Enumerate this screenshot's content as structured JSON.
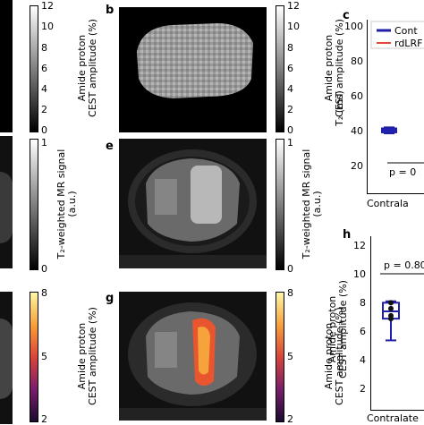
{
  "panels": {
    "b": {
      "letter": "b"
    },
    "c": {
      "letter": "c"
    },
    "e": {
      "letter": "e"
    },
    "g": {
      "letter": "g"
    },
    "h": {
      "letter": "h"
    }
  },
  "colorbars": {
    "top": {
      "ticks": [
        "12",
        "10",
        "8",
        "6",
        "4",
        "2",
        "0"
      ],
      "label_line1": "Amide proton",
      "label_line2": "CEST amplitude (%)"
    },
    "mid": {
      "ticks": [
        "1",
        "0"
      ],
      "label_line1": "T₂-weighted MR signal",
      "label_line2": "(a.u.)"
    },
    "bot": {
      "ticks": [
        "8",
        "5",
        "2"
      ],
      "label_line1": "Amide proton",
      "label_line2": "CEST amplitude (%)"
    }
  },
  "plot_c": {
    "legend": [
      "Cont",
      "rdLRF"
    ],
    "legend_colors": [
      "#1f1fa8",
      "#e04a3a"
    ],
    "y_ticks": [
      "100",
      "80",
      "60",
      "40",
      "20"
    ],
    "ylabel": "T₂ (ms)",
    "p_text": "p = 0",
    "xlabel": "Contrala"
  },
  "plot_h": {
    "y_ticks": [
      "12",
      "10",
      "8",
      "6",
      "4",
      "2"
    ],
    "ylabel_line1": "Amide proton",
    "ylabel_line2": "CEST amplitude (%)",
    "p_text": "p = 0.80",
    "xlabel": "Contralate"
  },
  "chart_data": [
    {
      "type": "box",
      "panel": "c",
      "ylim": [
        20,
        100
      ],
      "series": [
        {
          "name": "Cont",
          "median": 48,
          "q1": 47,
          "q3": 49,
          "min": 46.5,
          "max": 49.5
        }
      ]
    },
    {
      "type": "box",
      "panel": "h",
      "ylim": [
        1,
        12
      ],
      "series": [
        {
          "median": 7.3,
          "q1": 6.8,
          "q3": 7.9,
          "min": 5.3,
          "max": 8.0,
          "points": [
            7.9,
            7.5,
            7.0,
            6.8
          ]
        }
      ]
    }
  ]
}
